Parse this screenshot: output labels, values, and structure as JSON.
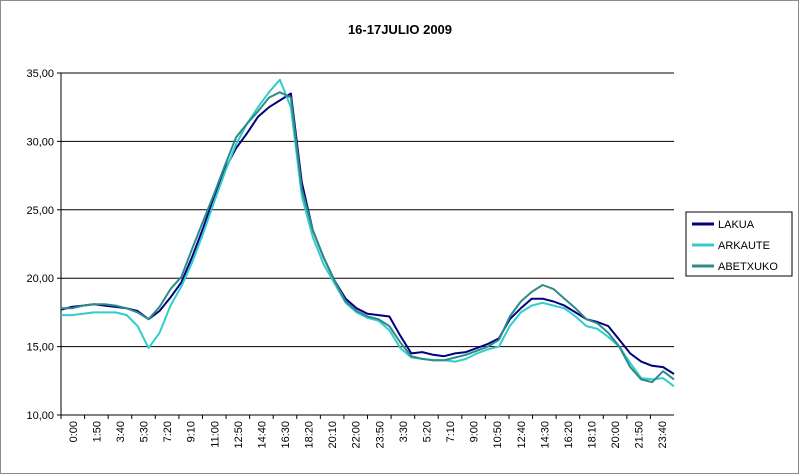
{
  "chart_data": {
    "type": "line",
    "title": "16-17JULIO 2009",
    "xlabel": "",
    "ylabel": "",
    "ylim": [
      10,
      35
    ],
    "y_ticks": [
      "10,00",
      "15,00",
      "20,00",
      "25,00",
      "30,00",
      "35,00"
    ],
    "x_ticks": [
      "0:00",
      "1:50",
      "3:40",
      "5:30",
      "7:20",
      "9:10",
      "11:00",
      "12:50",
      "14:40",
      "16:30",
      "18:20",
      "20:10",
      "22:00",
      "23:50",
      "3:30",
      "5:20",
      "7:10",
      "9:00",
      "10:50",
      "12:40",
      "14:30",
      "16:20",
      "18:10",
      "20:00",
      "21:50",
      "23:40"
    ],
    "grid": "horizontal",
    "legend_position": "right",
    "series": [
      {
        "name": "LAKUA",
        "color": "#000080",
        "values": [
          17.7,
          17.9,
          18.0,
          18.1,
          18.0,
          17.9,
          17.8,
          17.6,
          17.0,
          17.6,
          18.6,
          19.7,
          21.6,
          23.7,
          26.0,
          28.0,
          29.5,
          30.6,
          31.8,
          32.5,
          33.0,
          33.5,
          27.0,
          23.5,
          21.5,
          19.8,
          18.5,
          17.8,
          17.4,
          17.3,
          17.2,
          15.8,
          14.5,
          14.6,
          14.4,
          14.3,
          14.5,
          14.6,
          14.9,
          15.2,
          15.6,
          17.0,
          17.8,
          18.5,
          18.5,
          18.3,
          18.0,
          17.5,
          17.0,
          16.8,
          16.5,
          15.5,
          14.5,
          13.9,
          13.6,
          13.5,
          13.0
        ]
      },
      {
        "name": "ARKAUTE",
        "color": "#33CCCC",
        "values": [
          17.3,
          17.3,
          17.4,
          17.5,
          17.5,
          17.5,
          17.3,
          16.5,
          14.9,
          16.0,
          18.0,
          19.4,
          21.2,
          23.3,
          25.6,
          27.8,
          29.8,
          31.3,
          32.5,
          33.6,
          34.5,
          32.5,
          26.0,
          23.0,
          21.0,
          19.6,
          18.2,
          17.5,
          17.1,
          16.9,
          16.2,
          14.9,
          14.2,
          14.1,
          14.0,
          14.0,
          13.9,
          14.1,
          14.5,
          14.8,
          15.0,
          16.5,
          17.5,
          18.0,
          18.2,
          18.0,
          17.8,
          17.2,
          16.5,
          16.3,
          15.7,
          15.0,
          13.8,
          12.7,
          12.6,
          12.7,
          12.1
        ]
      },
      {
        "name": "ABETXUKO",
        "color": "#2E8B87",
        "values": [
          17.8,
          17.8,
          18.0,
          18.1,
          18.1,
          18.0,
          17.8,
          17.5,
          17.0,
          17.9,
          19.2,
          20.1,
          22.2,
          24.2,
          26.2,
          28.3,
          30.3,
          31.3,
          32.2,
          33.2,
          33.6,
          33.2,
          26.5,
          23.5,
          21.5,
          19.8,
          18.3,
          17.6,
          17.2,
          17.0,
          16.5,
          15.3,
          14.3,
          14.1,
          14.0,
          14.0,
          14.2,
          14.4,
          14.7,
          15.0,
          15.5,
          17.2,
          18.3,
          19.0,
          19.5,
          19.2,
          18.5,
          17.8,
          17.0,
          16.7,
          16.0,
          15.0,
          13.5,
          12.6,
          12.4,
          13.2,
          12.6
        ]
      }
    ]
  }
}
